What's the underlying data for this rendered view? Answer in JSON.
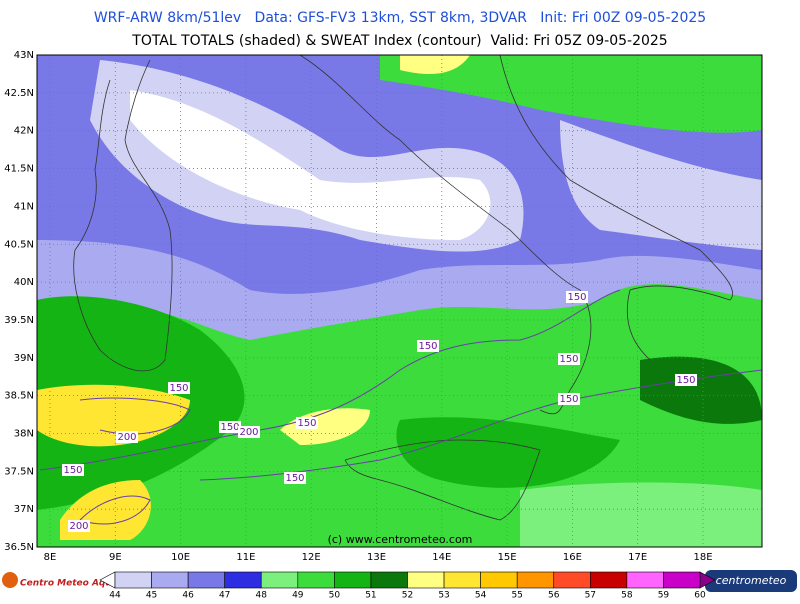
{
  "header": {
    "line1": "WRF-ARW 8km/51lev   Data: GFS-FV3 13km, SST 8km, 3DVAR   Init: Fri 00Z 09-05-2025",
    "line2": "TOTAL TOTALS (shaded) & SWEAT Index (contour)  Valid: Fri 05Z 09-05-2025"
  },
  "map": {
    "lat_labels": [
      {
        "value": 43,
        "label": "43N"
      },
      {
        "value": 42.5,
        "label": "42.5N"
      },
      {
        "value": 42,
        "label": "42N"
      },
      {
        "value": 41.5,
        "label": "41.5N"
      },
      {
        "value": 41,
        "label": "41N"
      },
      {
        "value": 40.5,
        "label": "40.5N"
      },
      {
        "value": 40,
        "label": "40N"
      },
      {
        "value": 39.5,
        "label": "39.5N"
      },
      {
        "value": 39,
        "label": "39N"
      },
      {
        "value": 38.5,
        "label": "38.5N"
      },
      {
        "value": 38,
        "label": "38N"
      },
      {
        "value": 37.5,
        "label": "37.5N"
      },
      {
        "value": 37,
        "label": "37N"
      },
      {
        "value": 36.5,
        "label": "36.5N"
      }
    ],
    "lon_labels": [
      {
        "value": 8,
        "label": "8E"
      },
      {
        "value": 9,
        "label": "9E"
      },
      {
        "value": 10,
        "label": "10E"
      },
      {
        "value": 11,
        "label": "11E"
      },
      {
        "value": 12,
        "label": "12E"
      },
      {
        "value": 13,
        "label": "13E"
      },
      {
        "value": 14,
        "label": "14E"
      },
      {
        "value": 15,
        "label": "15E"
      },
      {
        "value": 16,
        "label": "16E"
      },
      {
        "value": 17,
        "label": "17E"
      },
      {
        "value": 18,
        "label": "18E"
      }
    ],
    "contour_labels": [
      "150",
      "150",
      "150",
      "150",
      "150",
      "150",
      "150",
      "200",
      "150",
      "200",
      "150",
      "150",
      "200"
    ],
    "copyright": "(c) www.centrometeo.com"
  },
  "colorbar": {
    "levels": [
      44,
      45,
      46,
      47,
      48,
      49,
      50,
      51,
      52,
      53,
      54,
      55,
      56,
      57,
      58,
      59,
      60
    ],
    "colors": [
      "#d2d2f5",
      "#aaaaf0",
      "#7878e6",
      "#2d2de1",
      "#7cf07c",
      "#3cdc3c",
      "#14b414",
      "#0a780a",
      "#ffff82",
      "#ffe632",
      "#ffc800",
      "#ff9600",
      "#ff4b28",
      "#c80000",
      "#ff64ff",
      "#c800c8"
    ]
  },
  "logos": {
    "left": "Centro Meteo Aquileia",
    "right": "centrometeo"
  }
}
